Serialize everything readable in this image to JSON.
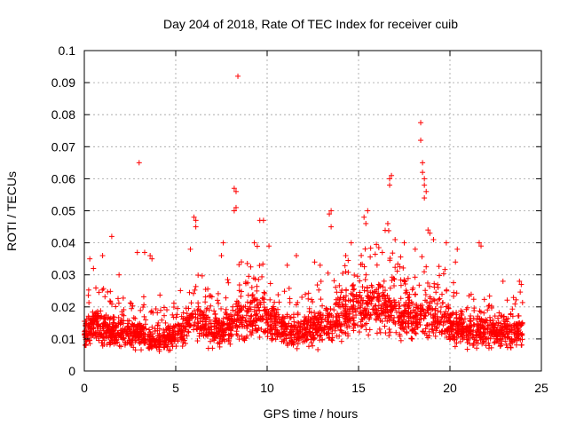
{
  "chart_data": {
    "type": "scatter",
    "title": "Day 204 of 2018, Rate Of TEC Index for receiver cuib",
    "xlabel": "GPS time / hours",
    "ylabel": "ROTI / TECUs",
    "xlim": [
      0,
      25
    ],
    "ylim": [
      0,
      0.1
    ],
    "xticks": [
      "0",
      "5",
      "10",
      "15",
      "20",
      "25"
    ],
    "yticks": [
      "0",
      "0.01",
      "0.02",
      "0.03",
      "0.04",
      "0.05",
      "0.06",
      "0.07",
      "0.08",
      "0.09",
      "0.1"
    ],
    "grid": true,
    "marker": "+",
    "series_color": "#ff0000",
    "series": [
      {
        "name": "ROTI",
        "points": [
          [
            8.4,
            0.092
          ],
          [
            3.0,
            0.065
          ],
          [
            18.4,
            0.0775
          ],
          [
            18.4,
            0.072
          ],
          [
            18.5,
            0.065
          ],
          [
            18.5,
            0.062
          ],
          [
            18.6,
            0.06
          ],
          [
            18.6,
            0.058
          ],
          [
            18.7,
            0.056
          ],
          [
            18.6,
            0.054
          ],
          [
            16.7,
            0.06
          ],
          [
            16.7,
            0.058
          ],
          [
            16.8,
            0.061
          ],
          [
            8.2,
            0.057
          ],
          [
            8.3,
            0.056
          ],
          [
            8.3,
            0.051
          ],
          [
            8.2,
            0.05
          ],
          [
            13.5,
            0.05
          ],
          [
            13.4,
            0.049
          ],
          [
            13.5,
            0.045
          ],
          [
            15.5,
            0.05
          ],
          [
            15.3,
            0.048
          ],
          [
            15.4,
            0.046
          ],
          [
            16.6,
            0.046
          ],
          [
            9.6,
            0.047
          ],
          [
            9.8,
            0.047
          ],
          [
            6.0,
            0.048
          ],
          [
            6.1,
            0.047
          ],
          [
            6.1,
            0.045
          ],
          [
            1.5,
            0.042
          ],
          [
            21.6,
            0.04
          ],
          [
            21.7,
            0.039
          ],
          [
            18.9,
            0.043
          ],
          [
            18.8,
            0.044
          ],
          [
            19.1,
            0.041
          ],
          [
            3.3,
            0.037
          ],
          [
            2.9,
            0.037
          ],
          [
            3.6,
            0.036
          ],
          [
            3.7,
            0.035
          ],
          [
            0.3,
            0.035
          ],
          [
            9.3,
            0.04
          ],
          [
            10.1,
            0.039
          ],
          [
            7.6,
            0.04
          ],
          [
            7.5,
            0.036
          ],
          [
            5.8,
            0.038
          ],
          [
            11.6,
            0.036
          ],
          [
            14.6,
            0.04
          ],
          [
            17.0,
            0.041
          ],
          [
            17.5,
            0.04
          ],
          [
            19.8,
            0.04
          ],
          [
            20.4,
            0.038
          ],
          [
            22.9,
            0.028
          ],
          [
            23.8,
            0.028
          ],
          [
            23.9,
            0.027
          ],
          [
            1.0,
            0.036
          ],
          [
            0.5,
            0.032
          ],
          [
            1.9,
            0.03
          ],
          [
            12.6,
            0.034
          ],
          [
            12.9,
            0.033
          ],
          [
            11.1,
            0.033
          ],
          [
            14.3,
            0.036
          ],
          [
            20.3,
            0.034
          ],
          [
            18.1,
            0.038
          ],
          [
            16.3,
            0.037
          ]
        ]
      }
    ]
  }
}
